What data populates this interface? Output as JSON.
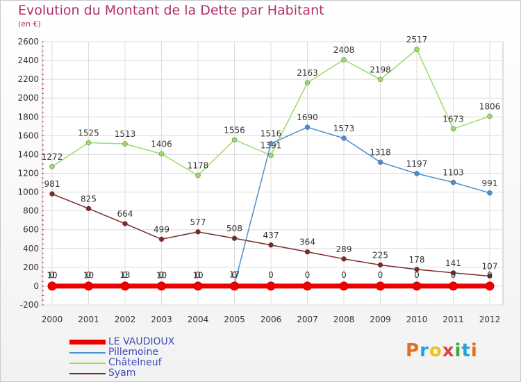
{
  "chart_data": {
    "type": "line",
    "title": "Evolution du Montant de la Dette par Habitant",
    "unit": "(en €)",
    "xlabel": "",
    "ylabel": "",
    "categories": [
      "2000",
      "2001",
      "2002",
      "2003",
      "2004",
      "2005",
      "2006",
      "2007",
      "2008",
      "2009",
      "2010",
      "2011",
      "2012"
    ],
    "ylim": [
      -200,
      2600
    ],
    "yticks": [
      -200,
      0,
      200,
      400,
      600,
      800,
      1000,
      1200,
      1400,
      1600,
      1800,
      2000,
      2200,
      2400,
      2600
    ],
    "grid": true,
    "legend_position": "bottom-left",
    "series": [
      {
        "name": "LE VAUDIOUX",
        "color": "#ee0000",
        "values": [
          0,
          0,
          0,
          0,
          0,
          0,
          0,
          0,
          0,
          0,
          0,
          0,
          0
        ],
        "labels": [
          "0",
          "0",
          "0",
          "0",
          "0",
          "0",
          "0",
          "0",
          "0",
          "0",
          "0",
          "0",
          "0"
        ]
      },
      {
        "name": "Pillemoine",
        "color": "#4a8fd0",
        "values": [
          10,
          10,
          13,
          10,
          10,
          17,
          1516,
          1690,
          1573,
          1318,
          1197,
          1103,
          991
        ],
        "labels": [
          "10",
          "10",
          "13",
          "10",
          "10",
          "17",
          "1516",
          "1690",
          "1573",
          "1318",
          "1197",
          "1103",
          "991"
        ]
      },
      {
        "name": "Châtelneuf",
        "color": "#99dd66",
        "values": [
          1272,
          1525,
          1513,
          1406,
          1178,
          1556,
          1391,
          2163,
          2408,
          2198,
          2517,
          1673,
          1806
        ],
        "labels": [
          "1272",
          "1525",
          "1513",
          "1406",
          "1178",
          "1556",
          "1391",
          "2163",
          "2408",
          "2198",
          "2517",
          "1673",
          "1806"
        ]
      },
      {
        "name": "Syam",
        "color": "#7a2a2a",
        "values": [
          981,
          825,
          664,
          499,
          577,
          508,
          437,
          364,
          289,
          225,
          178,
          141,
          107
        ],
        "labels": [
          "981",
          "825",
          "664",
          "499",
          "577",
          "508",
          "437",
          "364",
          "289",
          "225",
          "178",
          "141",
          "107"
        ]
      }
    ]
  },
  "logo": {
    "letters": [
      "P",
      "r",
      "o",
      "x",
      "i",
      "t",
      "i"
    ],
    "colors": [
      "#e07020",
      "#2a9fd6",
      "#f0c020",
      "#e04040",
      "#3aaa3a",
      "#2a9fd6",
      "#e07020"
    ]
  }
}
